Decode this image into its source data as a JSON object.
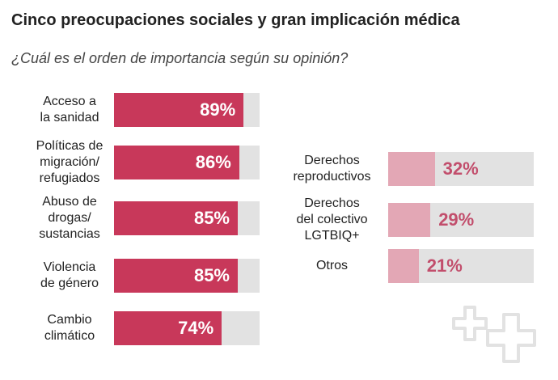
{
  "title": "Cinco preocupaciones sociales y gran implicación médica",
  "subtitle": "¿Cuál es el orden de importancia según su opinión?",
  "chart_data": [
    {
      "type": "bar",
      "orientation": "horizontal",
      "categories": [
        "Acceso a la sanidad",
        "Políticas de migración/ refugiados",
        "Abuso de drogas/ sustancias",
        "Violencia de género",
        "Cambio climático"
      ],
      "values": [
        89,
        86,
        85,
        85,
        74
      ],
      "value_labels": [
        "89%",
        "86%",
        "85%",
        "85%",
        "74%"
      ],
      "color": "#c8385a",
      "label_color": "#ffffff",
      "track_color": "#e2e2e2",
      "xlim": [
        0,
        100
      ]
    },
    {
      "type": "bar",
      "orientation": "horizontal",
      "categories": [
        "Derechos reproductivos",
        "Derechos del colectivo LGTBIQ+",
        "Otros"
      ],
      "values": [
        32,
        29,
        21
      ],
      "value_labels": [
        "32%",
        "29%",
        "21%"
      ],
      "color": "#e3a7b5",
      "label_color": "#c24e6c",
      "track_color": "#e2e2e2",
      "xlim": [
        0,
        100
      ]
    }
  ]
}
